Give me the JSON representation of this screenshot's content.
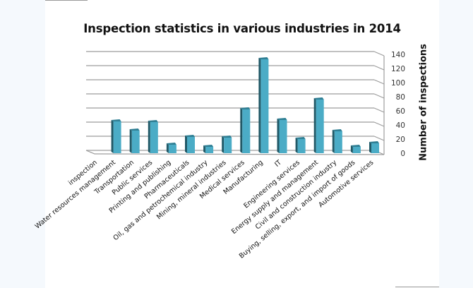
{
  "chart_data": {
    "type": "bar",
    "style": "3d-column",
    "title": "Inspection statistics in various industries in 2014",
    "xlabel": "",
    "ylabel": "Number of inspections",
    "ylim": [
      0,
      140
    ],
    "yticks": [
      0,
      20,
      40,
      60,
      80,
      100,
      120,
      140
    ],
    "grid": true,
    "legend": "none",
    "bar_color": "#4bacc6",
    "bar_side_color": "#215967",
    "categories": [
      "inspection",
      "Water resources management",
      "Transportation",
      "Public services",
      "Printing and publishing",
      "Pharmaceuticals",
      "Oil, gas and petrochemical industry",
      "Mining, mineral industries",
      "Medical services",
      "Manufacturing",
      "IT",
      "Engineering services",
      "Energy supply and management",
      "Civil and construction industry",
      "Buying, selling, export, and import of goods",
      "Automotive services"
    ],
    "values": [
      0,
      46,
      33,
      45,
      13,
      24,
      10,
      23,
      63,
      134,
      48,
      21,
      77,
      32,
      10,
      15
    ]
  }
}
